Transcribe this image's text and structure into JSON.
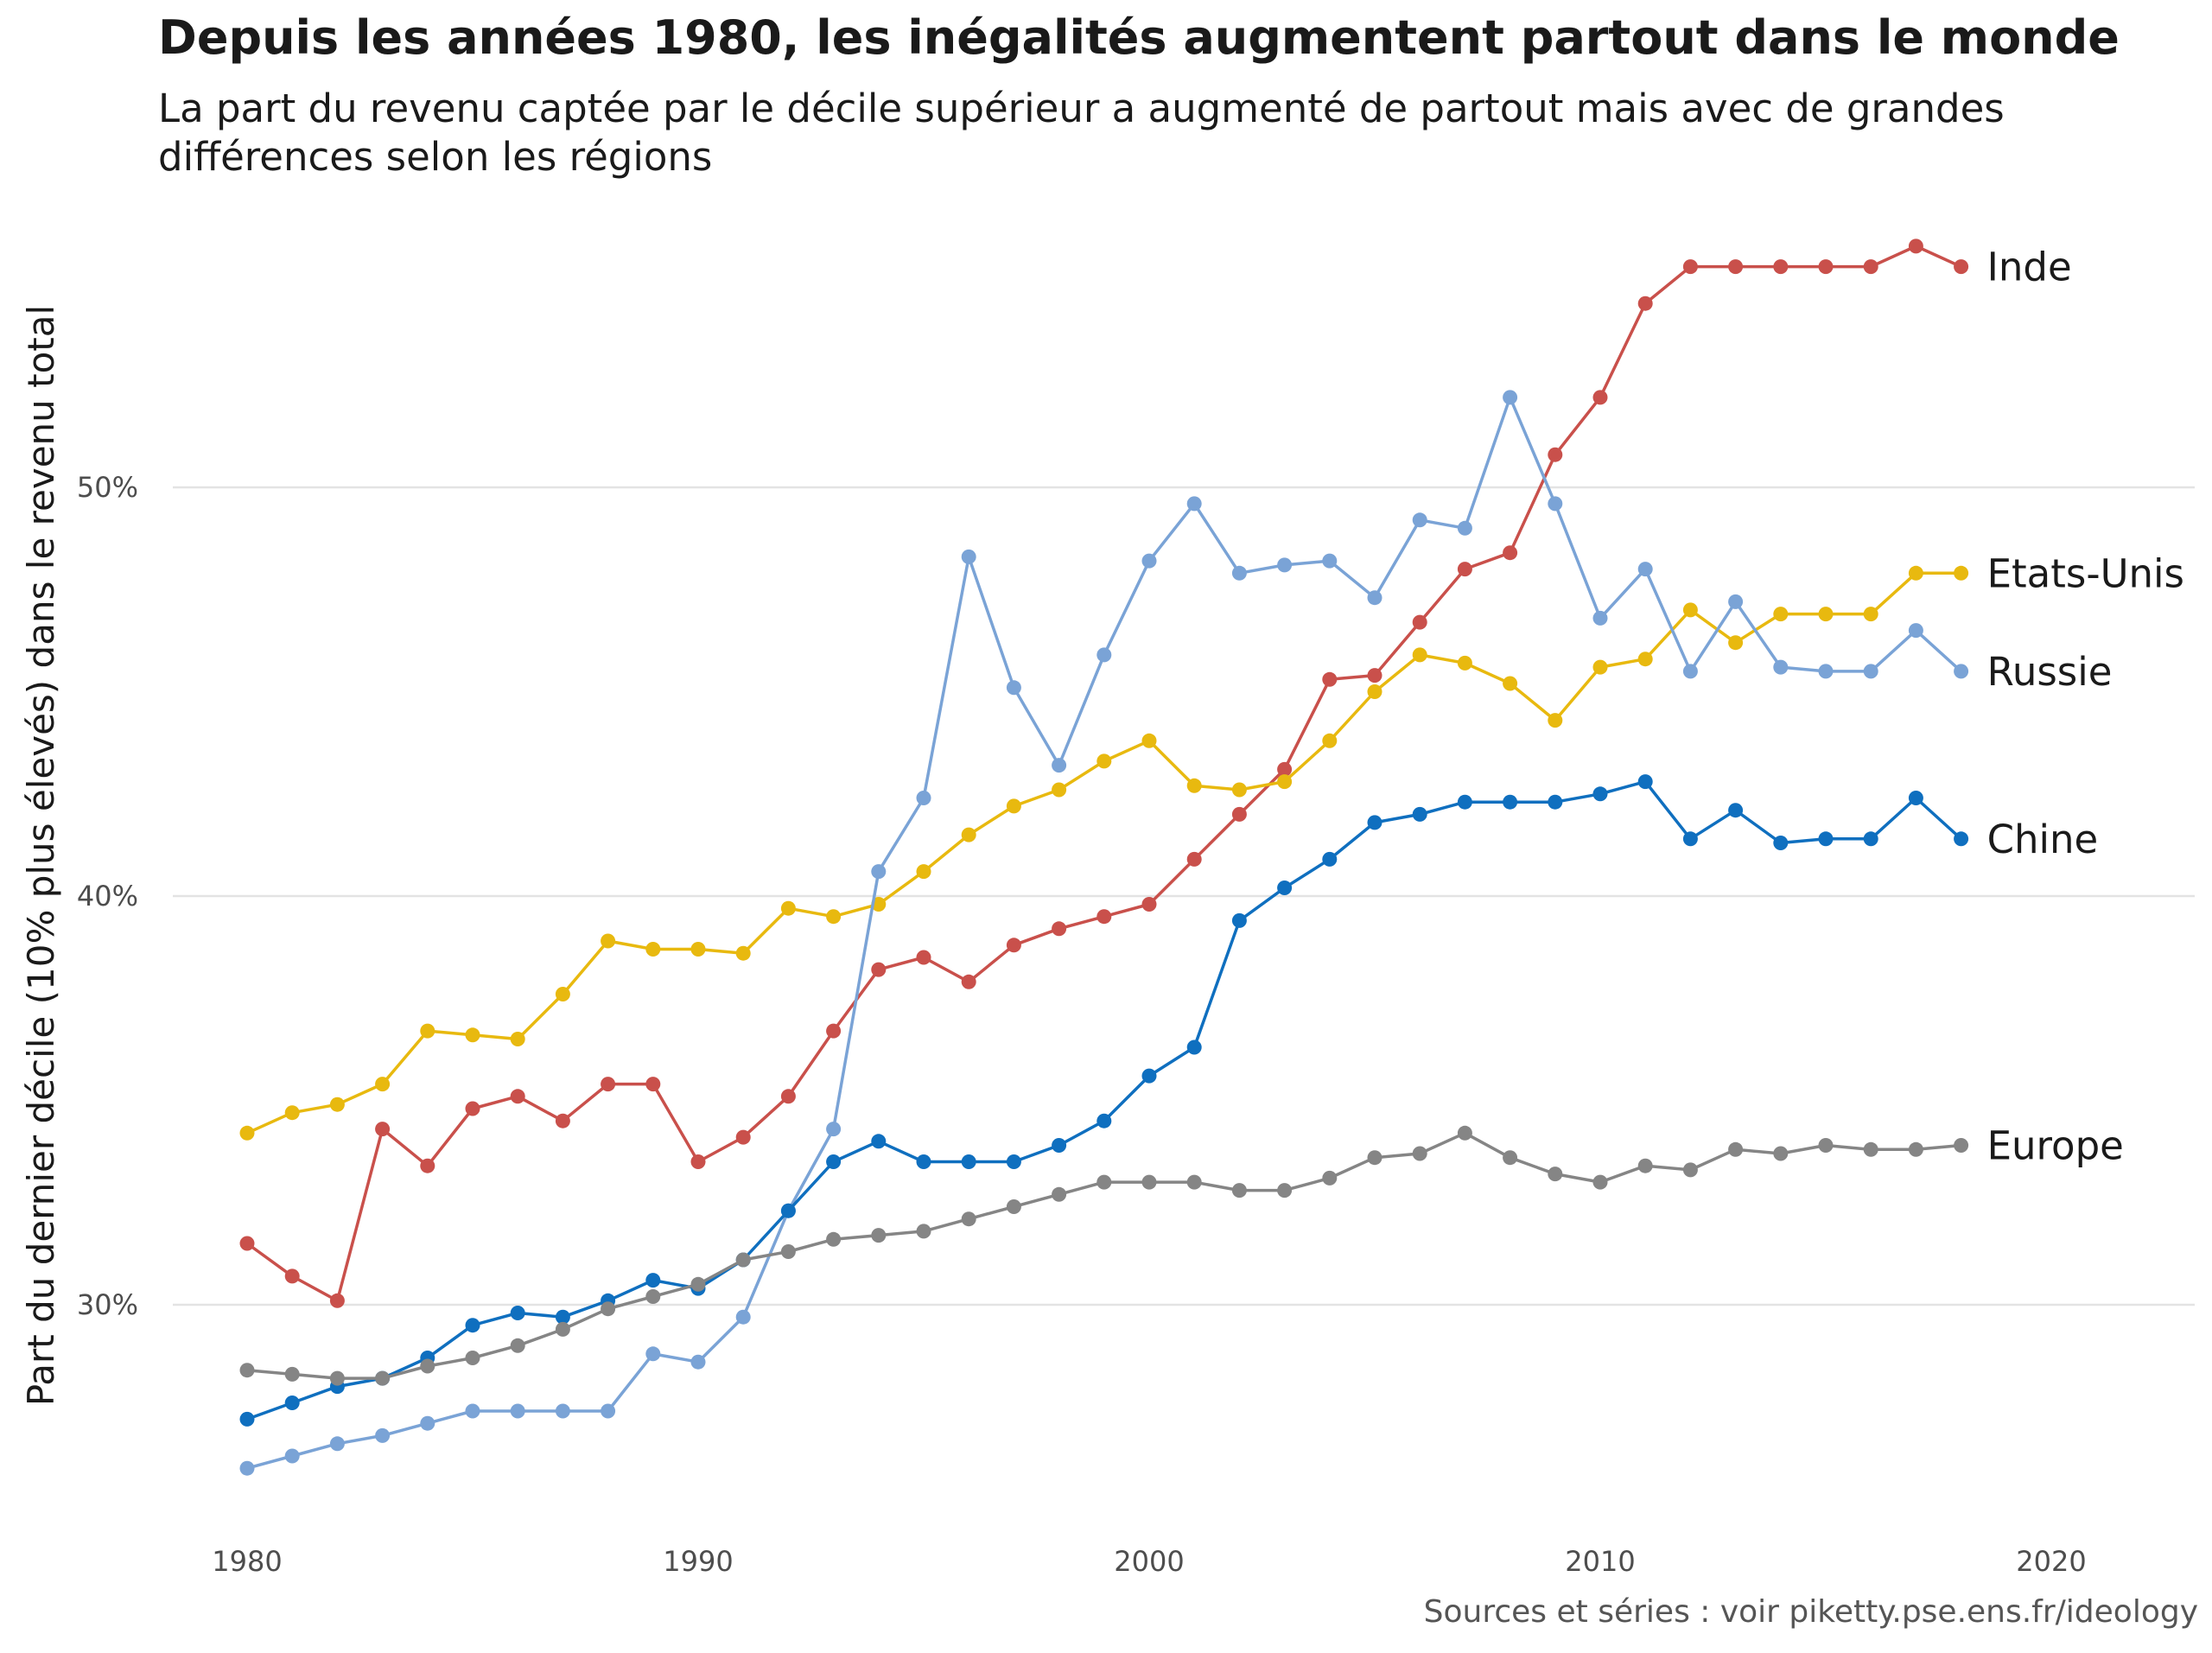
{
  "chart_data": {
    "type": "line",
    "title": "Depuis les années 1980, les inégalités augmentent partout dans le monde",
    "subtitle": "La part du revenu captée par le décile supérieur a augmenté de partout mais avec de grandes différences selon les régions",
    "ylabel": "Part du dernier décile (10% plus élevés) dans le revenu total",
    "xlabel": "",
    "caption": "Sources et séries : voir piketty.pse.ens.fr/ideology",
    "xlim": [
      1980,
      2020
    ],
    "ylim": [
      26,
      56
    ],
    "x_ticks": [
      1980,
      1990,
      2000,
      2010,
      2020
    ],
    "x_tick_labels": [
      "1980",
      "1990",
      "2000",
      "2010",
      "2020"
    ],
    "y_ticks": [
      30,
      40,
      50
    ],
    "y_tick_labels": [
      "30%",
      "40%",
      "50%"
    ],
    "grid": "horizontal",
    "legend": "direct labels at line ends",
    "x": [
      1980,
      1981,
      1982,
      1983,
      1984,
      1985,
      1986,
      1987,
      1988,
      1989,
      1990,
      1991,
      1992,
      1993,
      1994,
      1995,
      1996,
      1997,
      1998,
      1999,
      2000,
      2001,
      2002,
      2003,
      2004,
      2005,
      2006,
      2007,
      2008,
      2009,
      2010,
      2011,
      2012,
      2013,
      2014,
      2015,
      2016,
      2017,
      2018
    ],
    "series": [
      {
        "name": "Inde",
        "color": "#c9504b",
        "values": [
          31.5,
          30.7,
          30.1,
          34.3,
          33.4,
          34.8,
          35.1,
          34.5,
          35.4,
          35.4,
          33.5,
          34.1,
          35.1,
          36.7,
          38.2,
          38.5,
          37.9,
          38.8,
          39.2,
          39.5,
          39.8,
          40.9,
          42.0,
          43.1,
          45.3,
          45.4,
          46.7,
          48.0,
          48.4,
          50.8,
          52.2,
          54.5,
          55.4,
          55.4,
          55.4,
          55.4,
          55.4,
          55.9,
          55.4
        ]
      },
      {
        "name": "Etats-Unis",
        "color": "#e8b90f",
        "values": [
          34.2,
          34.7,
          34.9,
          35.4,
          36.7,
          36.6,
          36.5,
          37.6,
          38.9,
          38.7,
          38.7,
          38.6,
          39.7,
          39.5,
          39.8,
          40.6,
          41.5,
          42.2,
          42.6,
          43.3,
          43.8,
          42.7,
          42.6,
          42.8,
          43.8,
          45.0,
          45.9,
          45.7,
          45.2,
          44.3,
          45.6,
          45.8,
          47.0,
          46.2,
          46.9,
          46.9,
          46.9,
          47.9,
          47.9
        ]
      },
      {
        "name": "Russie",
        "color": "#7aa3d6",
        "values": [
          26.0,
          26.3,
          26.6,
          26.8,
          27.1,
          27.4,
          27.4,
          27.4,
          27.4,
          28.8,
          28.6,
          29.7,
          32.3,
          34.3,
          40.6,
          42.4,
          48.3,
          45.1,
          43.2,
          45.9,
          48.2,
          49.6,
          47.9,
          48.1,
          48.2,
          47.3,
          49.2,
          49.0,
          52.2,
          49.6,
          46.8,
          48.0,
          45.5,
          47.2,
          45.6,
          45.5,
          45.5,
          46.5,
          45.5
        ]
      },
      {
        "name": "Chine",
        "color": "#0f6fbf",
        "values": [
          27.2,
          27.6,
          28.0,
          28.2,
          28.7,
          29.5,
          29.8,
          29.7,
          30.1,
          30.6,
          30.4,
          31.1,
          32.3,
          33.5,
          34.0,
          33.5,
          33.5,
          33.5,
          33.9,
          34.5,
          35.6,
          36.3,
          39.4,
          40.2,
          40.9,
          41.8,
          42.0,
          42.3,
          42.3,
          42.3,
          42.5,
          42.8,
          41.4,
          42.1,
          41.3,
          41.4,
          41.4,
          42.4,
          41.4
        ]
      },
      {
        "name": "Europe",
        "color": "#858585",
        "values": [
          28.4,
          28.3,
          28.2,
          28.2,
          28.5,
          28.7,
          29.0,
          29.4,
          29.9,
          30.2,
          30.5,
          31.1,
          31.3,
          31.6,
          31.7,
          31.8,
          32.1,
          32.4,
          32.7,
          33.0,
          33.0,
          33.0,
          32.8,
          32.8,
          33.1,
          33.6,
          33.7,
          34.2,
          33.6,
          33.2,
          33.0,
          33.4,
          33.3,
          33.8,
          33.7,
          33.9,
          33.8,
          33.8,
          33.9
        ]
      }
    ]
  }
}
